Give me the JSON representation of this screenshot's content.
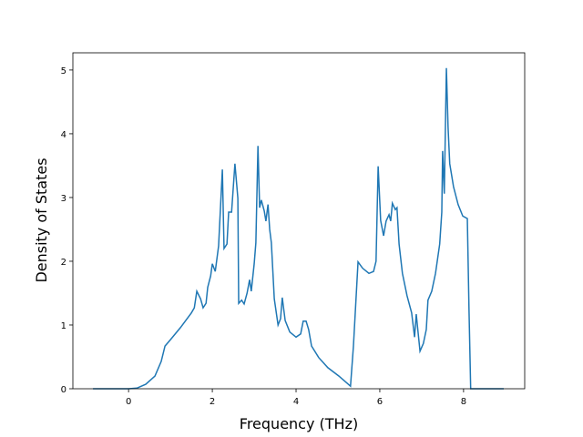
{
  "chart_data": {
    "type": "line",
    "x_label": "Frequency (THz)",
    "y_label": "Density of States",
    "xlim": [
      -1.33,
      9.46
    ],
    "ylim": [
      0,
      5.27
    ],
    "xticks": [
      0,
      2,
      4,
      6,
      8
    ],
    "yticks": [
      0,
      1,
      2,
      3,
      4,
      5
    ],
    "x": [
      -0.85,
      0,
      0.2,
      0.41,
      0.63,
      0.78,
      0.87,
      1.0,
      1.24,
      1.5,
      1.57,
      1.63,
      1.72,
      1.78,
      1.85,
      1.89,
      1.96,
      2.0,
      2.07,
      2.15,
      2.24,
      2.28,
      2.35,
      2.39,
      2.46,
      2.54,
      2.61,
      2.63,
      2.7,
      2.76,
      2.83,
      2.89,
      2.93,
      3.0,
      3.04,
      3.09,
      3.13,
      3.17,
      3.24,
      3.28,
      3.33,
      3.37,
      3.41,
      3.48,
      3.57,
      3.63,
      3.67,
      3.74,
      3.85,
      4.0,
      4.11,
      4.17,
      4.24,
      4.3,
      4.37,
      4.54,
      4.76,
      5.02,
      5.3,
      5.37,
      5.48,
      5.59,
      5.74,
      5.85,
      5.91,
      5.96,
      6.02,
      6.09,
      6.15,
      6.22,
      6.26,
      6.3,
      6.37,
      6.41,
      6.46,
      6.54,
      6.65,
      6.76,
      6.83,
      6.87,
      6.91,
      6.96,
      7.04,
      7.11,
      7.15,
      7.24,
      7.33,
      7.43,
      7.48,
      7.5,
      7.54,
      7.59,
      7.63,
      7.67,
      7.76,
      7.87,
      7.98,
      8.09,
      8.13,
      8.17,
      8.96
    ],
    "series": [
      {
        "name": "DOS",
        "color": "#1f77b4",
        "values": [
          0,
          0,
          0.01,
          0.07,
          0.2,
          0.43,
          0.67,
          0.77,
          0.96,
          1.19,
          1.27,
          1.53,
          1.41,
          1.27,
          1.34,
          1.59,
          1.77,
          1.96,
          1.84,
          2.24,
          3.44,
          2.2,
          2.27,
          2.77,
          2.77,
          3.53,
          2.99,
          1.34,
          1.39,
          1.33,
          1.5,
          1.71,
          1.53,
          1.96,
          2.29,
          3.81,
          2.84,
          2.96,
          2.79,
          2.63,
          2.89,
          2.5,
          2.29,
          1.41,
          1.0,
          1.1,
          1.43,
          1.07,
          0.89,
          0.81,
          0.86,
          1.06,
          1.06,
          0.93,
          0.67,
          0.49,
          0.33,
          0.2,
          0.04,
          0.67,
          1.99,
          1.89,
          1.81,
          1.84,
          2.0,
          3.49,
          2.64,
          2.4,
          2.63,
          2.73,
          2.63,
          2.91,
          2.81,
          2.84,
          2.27,
          1.81,
          1.46,
          1.19,
          0.81,
          1.17,
          0.91,
          0.59,
          0.71,
          0.93,
          1.39,
          1.53,
          1.81,
          2.27,
          2.77,
          3.73,
          3.06,
          5.03,
          4.1,
          3.53,
          3.17,
          2.89,
          2.71,
          2.67,
          1.24,
          0,
          0
        ]
      }
    ]
  }
}
